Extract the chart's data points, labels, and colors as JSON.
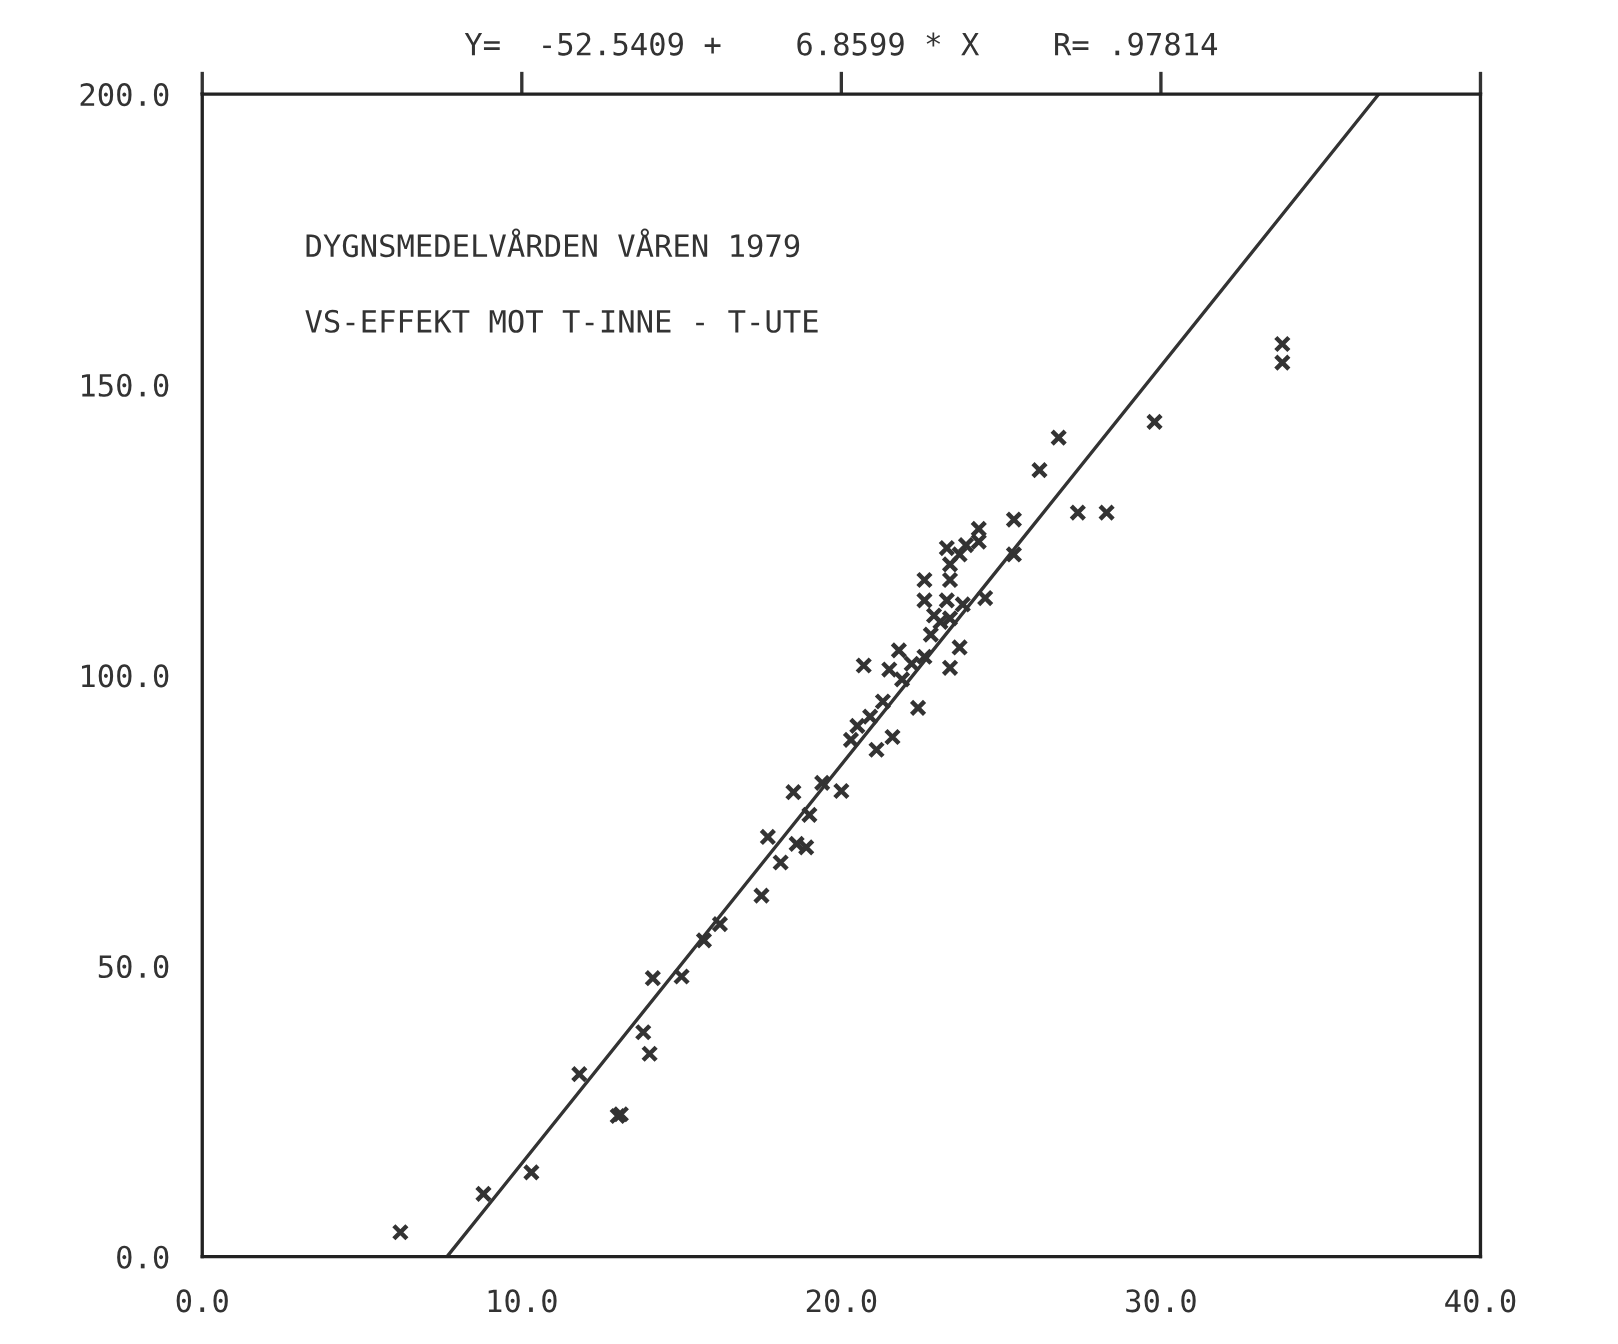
{
  "chart_data": {
    "type": "scatter",
    "title": "Y=  -52.5409 +    6.8599 * X    R= .97814",
    "annotations": [
      "DYGNSMEDELVÅRDEN VÅREN 1979",
      "VS-EFFEKT MOT T-INNE - T-UTE"
    ],
    "grid": false,
    "xlim": [
      0,
      40
    ],
    "ylim": [
      0,
      200
    ],
    "xticks": [
      {
        "value": 0,
        "label": "0.0"
      },
      {
        "value": 10,
        "label": "10.0"
      },
      {
        "value": 20,
        "label": "20.0"
      },
      {
        "value": 30,
        "label": "30.0"
      },
      {
        "value": 40,
        "label": "40.0"
      }
    ],
    "yticks": [
      {
        "value": 0,
        "label": "0.0"
      },
      {
        "value": 50,
        "label": "50.0"
      },
      {
        "value": 100,
        "label": "100.0"
      },
      {
        "value": 150,
        "label": "150.0"
      },
      {
        "value": 200,
        "label": "200.0"
      }
    ],
    "series": [
      {
        "marker": "cross",
        "color": "#333333",
        "x": [
          6.2,
          8.8,
          10.3,
          11.8,
          13.0,
          13.1,
          14.0,
          13.8,
          14.1,
          15.0,
          15.7,
          16.2,
          17.5,
          17.7,
          18.1,
          18.6,
          18.9,
          18.5,
          19.4,
          20.0,
          19.0,
          21.1,
          21.6,
          20.3,
          20.5,
          20.9,
          21.3,
          22.4,
          20.7,
          21.5,
          21.9,
          21.8,
          22.2,
          22.6,
          23.4,
          23.7,
          22.8,
          23.1,
          22.9,
          23.4,
          23.8,
          22.6,
          23.3,
          24.5,
          22.6,
          23.4,
          23.4,
          23.7,
          23.3,
          23.9,
          24.3,
          24.3,
          25.4,
          25.4,
          27.4,
          28.3,
          26.2,
          26.8,
          29.8,
          33.8,
          33.8
        ],
        "values": [
          4.2,
          10.8,
          14.5,
          31.4,
          24.2,
          24.5,
          34.9,
          38.6,
          47.9,
          48.2,
          54.4,
          57.2,
          62.1,
          72.2,
          67.8,
          71,
          70.4,
          79.9,
          81.5,
          80.1,
          76,
          87.2,
          89.4,
          88.9,
          91.3,
          92.9,
          95.5,
          94.4,
          101.7,
          101,
          99.3,
          104.3,
          102,
          103.2,
          101.3,
          104.8,
          107,
          109.2,
          110.3,
          109.8,
          112.2,
          112.9,
          112.9,
          113.3,
          116.4,
          116.4,
          119.1,
          120.8,
          121.9,
          122.4,
          123,
          125.2,
          120.8,
          126.8,
          128,
          128,
          135.3,
          140.9,
          143.6,
          157,
          153.8
        ]
      },
      {
        "type": "line",
        "color": "#333333",
        "x": [
          7.66,
          36.82
        ],
        "values": [
          0,
          200
        ]
      }
    ]
  }
}
